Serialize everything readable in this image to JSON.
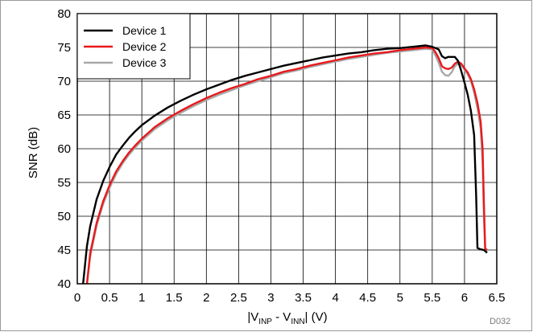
{
  "chart_data": {
    "type": "line",
    "xlabel_parts": {
      "pre": "|V",
      "sub1": "INP",
      "mid": " - V",
      "sub2": "INN",
      "post": "| (V)"
    },
    "ylabel": "SNR (dB)",
    "xlim": [
      0,
      6.5
    ],
    "ylim": [
      40,
      80
    ],
    "xticks": [
      "0",
      "0.5",
      "1",
      "1.5",
      "2",
      "2.5",
      "3",
      "3.5",
      "4",
      "4.5",
      "5",
      "5.5",
      "6",
      "6.5"
    ],
    "yticks": [
      "40",
      "45",
      "50",
      "55",
      "60",
      "65",
      "70",
      "75",
      "80"
    ],
    "grid": true,
    "legend_position": "top-left",
    "corner_label": "D032",
    "series": [
      {
        "name": "Device 1",
        "color": "#000000",
        "x": [
          0.09,
          0.15,
          0.2,
          0.3,
          0.4,
          0.5,
          0.6,
          0.7,
          0.8,
          0.9,
          1.0,
          1.2,
          1.4,
          1.6,
          1.8,
          2.0,
          2.2,
          2.4,
          2.6,
          2.8,
          3.0,
          3.2,
          3.4,
          3.6,
          3.8,
          4.0,
          4.2,
          4.4,
          4.6,
          4.8,
          5.0,
          5.2,
          5.4,
          5.5,
          5.6,
          5.65,
          5.7,
          5.75,
          5.8,
          5.85,
          5.9,
          5.95,
          6.0,
          6.05,
          6.1,
          6.15,
          6.18,
          6.2,
          6.25,
          6.3,
          6.35
        ],
        "y": [
          40.0,
          45.6,
          48.5,
          52.5,
          55.2,
          57.3,
          59.1,
          60.4,
          61.6,
          62.6,
          63.5,
          64.9,
          66.1,
          67.1,
          68.0,
          68.8,
          69.5,
          70.2,
          70.8,
          71.3,
          71.8,
          72.3,
          72.7,
          73.1,
          73.5,
          73.8,
          74.1,
          74.3,
          74.6,
          74.8,
          74.9,
          75.1,
          75.3,
          75.1,
          74.7,
          73.7,
          73.4,
          73.6,
          73.6,
          73.6,
          73.0,
          71.5,
          69.8,
          68.0,
          65.6,
          62.0,
          53.0,
          45.3,
          45.1,
          45.0,
          44.6
        ]
      },
      {
        "name": "Device 2",
        "color": "#e8191c",
        "x": [
          0.15,
          0.2,
          0.3,
          0.4,
          0.5,
          0.6,
          0.7,
          0.8,
          0.9,
          1.0,
          1.2,
          1.4,
          1.6,
          1.8,
          2.0,
          2.2,
          2.4,
          2.6,
          2.8,
          3.0,
          3.2,
          3.4,
          3.6,
          3.8,
          4.0,
          4.2,
          4.4,
          4.6,
          4.8,
          5.0,
          5.2,
          5.4,
          5.5,
          5.55,
          5.6,
          5.65,
          5.7,
          5.75,
          5.8,
          5.85,
          5.9,
          5.95,
          6.0,
          6.05,
          6.1,
          6.15,
          6.2,
          6.25,
          6.28,
          6.3,
          6.32,
          6.35
        ],
        "y": [
          40.0,
          44.5,
          49.0,
          52.2,
          54.6,
          56.6,
          58.1,
          59.4,
          60.5,
          61.5,
          63.2,
          64.5,
          65.6,
          66.6,
          67.5,
          68.3,
          69.0,
          69.6,
          70.3,
          70.8,
          71.4,
          71.8,
          72.3,
          72.7,
          73.1,
          73.5,
          73.8,
          74.1,
          74.3,
          74.6,
          74.8,
          75.0,
          74.9,
          74.3,
          73.4,
          72.2,
          71.9,
          71.8,
          72.0,
          72.6,
          72.9,
          72.6,
          71.9,
          71.3,
          70.3,
          68.8,
          66.8,
          64.0,
          60.0,
          52.0,
          45.2,
          45.0
        ]
      },
      {
        "name": "Device 3",
        "color": "#a8a8a8",
        "x": [
          0.15,
          0.2,
          0.3,
          0.4,
          0.5,
          0.6,
          0.7,
          0.8,
          0.9,
          1.0,
          1.2,
          1.4,
          1.6,
          1.8,
          2.0,
          2.2,
          2.4,
          2.6,
          2.8,
          3.0,
          3.2,
          3.4,
          3.6,
          3.8,
          4.0,
          4.2,
          4.4,
          4.6,
          4.8,
          5.0,
          5.2,
          5.4,
          5.5,
          5.55,
          5.6,
          5.65,
          5.7,
          5.75,
          5.8,
          5.85,
          5.9,
          5.95,
          6.0,
          6.05,
          6.1,
          6.15,
          6.2,
          6.25,
          6.28,
          6.3,
          6.32,
          6.35
        ],
        "y": [
          40.0,
          44.0,
          48.6,
          51.8,
          54.2,
          56.2,
          57.8,
          59.1,
          60.2,
          61.2,
          62.9,
          64.2,
          65.3,
          66.3,
          67.2,
          68.0,
          68.7,
          69.4,
          70.0,
          70.6,
          71.2,
          71.6,
          72.1,
          72.5,
          72.9,
          73.3,
          73.6,
          73.9,
          74.2,
          74.4,
          74.6,
          74.8,
          74.7,
          73.8,
          72.7,
          71.4,
          70.9,
          70.8,
          71.3,
          72.2,
          72.6,
          72.4,
          71.7,
          71.0,
          70.0,
          68.3,
          66.0,
          63.0,
          58.0,
          50.0,
          45.0,
          44.9
        ]
      }
    ]
  }
}
